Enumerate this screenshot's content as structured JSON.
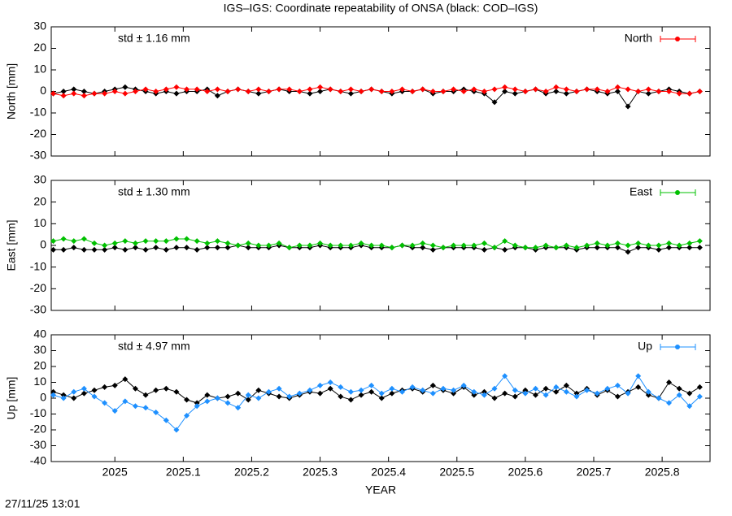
{
  "title": "IGS–IGS: Coordinate repeatability of ONSA (black: COD–IGS)",
  "timestamp": "27/11/25 13:01",
  "chart_data": [
    {
      "type": "line",
      "ylabel": "North [mm]",
      "annotation": "std ± 1.16 mm",
      "legend": "upper right",
      "x": [
        2024.91,
        2024.925,
        2024.94,
        2024.955,
        2024.97,
        2024.985,
        2025,
        2025.015,
        2025.03,
        2025.045,
        2025.06,
        2025.075,
        2025.09,
        2025.105,
        2025.12,
        2025.135,
        2025.15,
        2025.165,
        2025.18,
        2025.195,
        2025.21,
        2025.225,
        2025.24,
        2025.255,
        2025.27,
        2025.285,
        2025.3,
        2025.315,
        2025.33,
        2025.345,
        2025.36,
        2025.375,
        2025.39,
        2025.405,
        2025.42,
        2025.435,
        2025.45,
        2025.465,
        2025.48,
        2025.495,
        2025.51,
        2025.525,
        2025.54,
        2025.555,
        2025.57,
        2025.585,
        2025.6,
        2025.615,
        2025.63,
        2025.645,
        2025.66,
        2025.675,
        2025.69,
        2025.705,
        2025.72,
        2025.735,
        2025.75,
        2025.765,
        2025.78,
        2025.795,
        2025.81,
        2025.825,
        2025.84,
        2025.855
      ],
      "xlim": [
        2024.907,
        2025.87
      ],
      "xticks": [
        2025,
        2025.1,
        2025.2,
        2025.3,
        2025.4,
        2025.5,
        2025.6,
        2025.7,
        2025.8
      ],
      "ylim": [
        -30,
        30
      ],
      "yticks": [
        -30,
        -20,
        -10,
        0,
        10,
        20,
        30
      ],
      "series": [
        {
          "color": "#000000",
          "values": [
            -1,
            0,
            1,
            0,
            -1,
            0,
            1,
            2,
            1,
            0,
            -1,
            0,
            -1,
            0,
            0,
            1,
            -2,
            0,
            1,
            0,
            -1,
            0,
            1,
            0,
            0,
            -1,
            0,
            1,
            0,
            -1,
            0,
            1,
            0,
            -1,
            0,
            0,
            1,
            -1,
            0,
            0,
            1,
            0,
            -1,
            -5,
            0,
            -1,
            0,
            1,
            -1,
            0,
            -1,
            0,
            1,
            0,
            -1,
            0,
            -7,
            0,
            -1,
            0,
            1,
            0,
            -1,
            0
          ]
        },
        {
          "name": "North",
          "color": "#ff0000",
          "values": [
            -1,
            -2,
            -1,
            -2,
            -1,
            -1,
            0,
            -1,
            0,
            1,
            0,
            1,
            2,
            1,
            1,
            0,
            1,
            0,
            1,
            0,
            1,
            0,
            1,
            1,
            0,
            1,
            2,
            1,
            0,
            1,
            0,
            1,
            0,
            0,
            1,
            0,
            1,
            0,
            0,
            1,
            0,
            1,
            0,
            1,
            2,
            1,
            0,
            1,
            0,
            2,
            1,
            0,
            1,
            1,
            0,
            2,
            1,
            0,
            1,
            0,
            0,
            -1,
            -1,
            0
          ]
        }
      ]
    },
    {
      "type": "line",
      "ylabel": "East [mm]",
      "annotation": "std ± 1.30 mm",
      "legend": "upper right",
      "x": [
        2024.91,
        2024.925,
        2024.94,
        2024.955,
        2024.97,
        2024.985,
        2025,
        2025.015,
        2025.03,
        2025.045,
        2025.06,
        2025.075,
        2025.09,
        2025.105,
        2025.12,
        2025.135,
        2025.15,
        2025.165,
        2025.18,
        2025.195,
        2025.21,
        2025.225,
        2025.24,
        2025.255,
        2025.27,
        2025.285,
        2025.3,
        2025.315,
        2025.33,
        2025.345,
        2025.36,
        2025.375,
        2025.39,
        2025.405,
        2025.42,
        2025.435,
        2025.45,
        2025.465,
        2025.48,
        2025.495,
        2025.51,
        2025.525,
        2025.54,
        2025.555,
        2025.57,
        2025.585,
        2025.6,
        2025.615,
        2025.63,
        2025.645,
        2025.66,
        2025.675,
        2025.69,
        2025.705,
        2025.72,
        2025.735,
        2025.75,
        2025.765,
        2025.78,
        2025.795,
        2025.81,
        2025.825,
        2025.84,
        2025.855
      ],
      "xlim": [
        2024.907,
        2025.87
      ],
      "xticks": [
        2025,
        2025.1,
        2025.2,
        2025.3,
        2025.4,
        2025.5,
        2025.6,
        2025.7,
        2025.8
      ],
      "ylim": [
        -30,
        30
      ],
      "yticks": [
        -30,
        -20,
        -10,
        0,
        10,
        20,
        30
      ],
      "series": [
        {
          "color": "#000000",
          "values": [
            -2,
            -2,
            -1,
            -2,
            -2,
            -2,
            -1,
            -2,
            -1,
            -2,
            -1,
            -2,
            -1,
            -1,
            -2,
            -1,
            -1,
            -1,
            0,
            -1,
            -1,
            -1,
            0,
            -1,
            -1,
            -1,
            0,
            -1,
            -1,
            -1,
            0,
            -1,
            -1,
            -1,
            0,
            -1,
            -1,
            -2,
            -1,
            -1,
            -1,
            -1,
            -2,
            -1,
            -2,
            -1,
            -1,
            -2,
            -1,
            -1,
            -1,
            -2,
            -1,
            -1,
            -1,
            -1,
            -3,
            -1,
            -1,
            -2,
            -1,
            -1,
            -1,
            -1
          ]
        },
        {
          "name": "East",
          "color": "#00c000",
          "values": [
            2,
            3,
            2,
            3,
            1,
            0,
            1,
            2,
            1,
            2,
            2,
            2,
            3,
            3,
            2,
            1,
            2,
            1,
            0,
            1,
            0,
            0,
            1,
            -1,
            0,
            0,
            1,
            0,
            0,
            0,
            1,
            0,
            0,
            -1,
            0,
            0,
            1,
            0,
            -1,
            0,
            0,
            0,
            1,
            -1,
            2,
            0,
            -1,
            -1,
            0,
            -1,
            0,
            -1,
            0,
            1,
            0,
            1,
            0,
            1,
            0,
            0,
            1,
            0,
            1,
            2
          ]
        }
      ]
    },
    {
      "type": "line",
      "ylabel": "Up [mm]",
      "annotation": "std ± 4.97 mm",
      "legend": "upper right",
      "xlabel": "YEAR",
      "x": [
        2024.91,
        2024.925,
        2024.94,
        2024.955,
        2024.97,
        2024.985,
        2025,
        2025.015,
        2025.03,
        2025.045,
        2025.06,
        2025.075,
        2025.09,
        2025.105,
        2025.12,
        2025.135,
        2025.15,
        2025.165,
        2025.18,
        2025.195,
        2025.21,
        2025.225,
        2025.24,
        2025.255,
        2025.27,
        2025.285,
        2025.3,
        2025.315,
        2025.33,
        2025.345,
        2025.36,
        2025.375,
        2025.39,
        2025.405,
        2025.42,
        2025.435,
        2025.45,
        2025.465,
        2025.48,
        2025.495,
        2025.51,
        2025.525,
        2025.54,
        2025.555,
        2025.57,
        2025.585,
        2025.6,
        2025.615,
        2025.63,
        2025.645,
        2025.66,
        2025.675,
        2025.69,
        2025.705,
        2025.72,
        2025.735,
        2025.75,
        2025.765,
        2025.78,
        2025.795,
        2025.81,
        2025.825,
        2025.84,
        2025.855
      ],
      "xlim": [
        2024.907,
        2025.87
      ],
      "xticks": [
        2025,
        2025.1,
        2025.2,
        2025.3,
        2025.4,
        2025.5,
        2025.6,
        2025.7,
        2025.8
      ],
      "ylim": [
        -40,
        40
      ],
      "yticks": [
        -40,
        -30,
        -20,
        -10,
        0,
        10,
        20,
        30,
        40
      ],
      "series": [
        {
          "color": "#000000",
          "values": [
            4,
            2,
            0,
            3,
            5,
            7,
            8,
            12,
            6,
            2,
            5,
            6,
            4,
            -1,
            -3,
            2,
            0,
            1,
            3,
            -1,
            5,
            3,
            1,
            0,
            2,
            4,
            3,
            6,
            1,
            -1,
            2,
            4,
            0,
            3,
            5,
            6,
            4,
            8,
            5,
            3,
            7,
            2,
            4,
            0,
            3,
            1,
            5,
            2,
            6,
            4,
            8,
            3,
            6,
            2,
            5,
            1,
            4,
            7,
            2,
            0,
            10,
            6,
            3,
            7
          ]
        },
        {
          "name": "Up",
          "color": "#1e90ff",
          "values": [
            2,
            0,
            4,
            6,
            1,
            -3,
            -8,
            -2,
            -5,
            -6,
            -9,
            -14,
            -20,
            -11,
            -5,
            -2,
            0,
            -3,
            -6,
            2,
            0,
            4,
            6,
            1,
            3,
            5,
            8,
            10,
            7,
            4,
            5,
            8,
            3,
            6,
            4,
            7,
            5,
            3,
            6,
            5,
            8,
            4,
            2,
            6,
            14,
            5,
            3,
            6,
            2,
            7,
            4,
            1,
            5,
            3,
            6,
            8,
            3,
            14,
            4,
            0,
            -3,
            2,
            -5,
            1
          ]
        }
      ]
    }
  ]
}
